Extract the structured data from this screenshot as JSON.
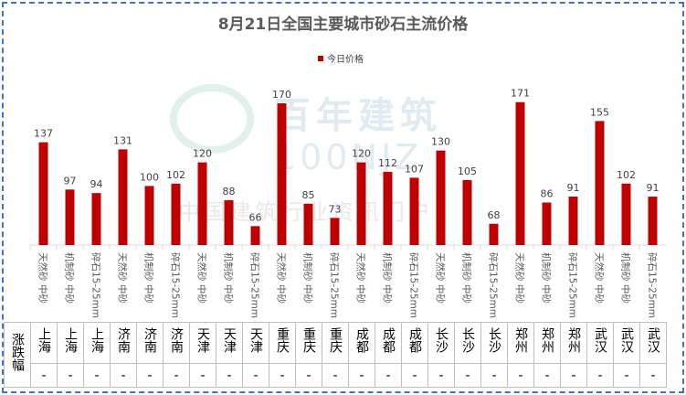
{
  "chart_data": {
    "type": "bar",
    "title": "8月21日全国主要城市砂石主流价格",
    "legend": {
      "entries": [
        "今日价格"
      ],
      "placement": "top"
    },
    "series": [
      {
        "name": "今日价格",
        "color": "#c00000",
        "values": [
          137,
          97,
          94,
          131,
          100,
          102,
          120,
          88,
          66,
          170,
          85,
          73,
          120,
          112,
          107,
          130,
          105,
          68,
          171,
          86,
          91,
          155,
          102,
          91
        ]
      }
    ],
    "categories": [
      "天然砂 中砂",
      "机制砂 中砂",
      "碎石15-25mm",
      "天然砂 中砂",
      "机制砂 中砂",
      "碎石15-25mm",
      "天然砂 中砂",
      "机制砂 中砂",
      "碎石15-25mm",
      "天然砂 中砂",
      "机制砂 中砂",
      "碎石15-25mm",
      "天然砂 中砂",
      "机制砂 中砂",
      "碎石15-25mm",
      "天然砂 中砂",
      "机制砂 中砂",
      "碎石15-25mm",
      "天然砂 中砂",
      "机制砂 中砂",
      "碎石15-25mm",
      "天然砂 中砂",
      "机制砂 中砂",
      "碎石15-25mm"
    ],
    "ylim": [
      50,
      180
    ],
    "grid": false
  },
  "table": {
    "row_header": "涨跌幅",
    "cities": [
      "上海",
      "上海",
      "上海",
      "济南",
      "济南",
      "济南",
      "天津",
      "天津",
      "天津",
      "重庆",
      "重庆",
      "重庆",
      "成都",
      "成都",
      "成都",
      "长沙",
      "长沙",
      "长沙",
      "郑州",
      "郑州",
      "郑州",
      "武汉",
      "武汉",
      "武汉"
    ],
    "changes": [
      "-",
      "-",
      "-",
      "-",
      "-",
      "-",
      "-",
      "-",
      "-",
      "-",
      "-",
      "-",
      "-",
      "-",
      "-",
      "-",
      "-",
      "-",
      "-",
      "-",
      "-",
      "-",
      "-",
      "-"
    ]
  },
  "watermark": {
    "brand": "百年建筑",
    "code": "100NJZ",
    "slogan": "中国建筑行业资讯门户"
  }
}
